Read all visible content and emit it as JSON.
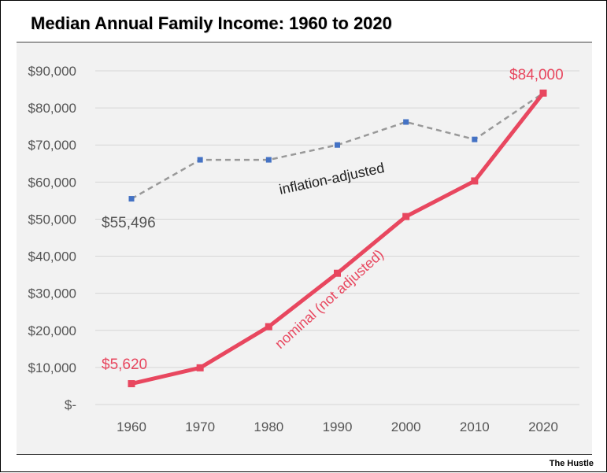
{
  "chart_data": {
    "type": "line",
    "title": "Median Annual Family Income: 1960 to 2020",
    "xlabel": "",
    "ylabel": "",
    "x": [
      1960,
      1970,
      1980,
      1990,
      2000,
      2010,
      2020
    ],
    "ylim": [
      0,
      90000
    ],
    "ytick_values": [
      0,
      10000,
      20000,
      30000,
      40000,
      50000,
      60000,
      70000,
      80000,
      90000
    ],
    "ytick_labels": [
      "$-",
      "$10,000",
      "$20,000",
      "$30,000",
      "$40,000",
      "$50,000",
      "$60,000",
      "$70,000",
      "$80,000",
      "$90,000"
    ],
    "xtick_labels": [
      "1960",
      "1970",
      "1980",
      "1990",
      "2000",
      "2010",
      "2020"
    ],
    "grid": true,
    "legend": "none",
    "series": [
      {
        "name": "inflation-adjusted",
        "values": [
          55496,
          66000,
          66000,
          70000,
          76200,
          71500,
          84000
        ],
        "color": "#999999",
        "marker_color": "#4472c4",
        "style": "dashed"
      },
      {
        "name": "nominal (not adjusted)",
        "values": [
          5620,
          9900,
          21000,
          35400,
          50700,
          60300,
          84000
        ],
        "color": "#e8475f",
        "marker_color": "#e8475f",
        "style": "solid"
      }
    ],
    "annotations": {
      "adjusted_start": "$55,496",
      "nominal_start": "$5,620",
      "end_value": "$84,000"
    }
  },
  "credit": "The Hustle"
}
